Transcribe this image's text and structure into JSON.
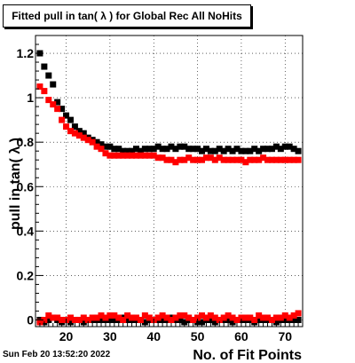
{
  "chart_data": {
    "type": "scatter",
    "title": "Fitted pull in tan( λ ) for Global Rec All NoHits",
    "xlabel": "No. of Fit Points",
    "ylabel": "pull in tan( λ )",
    "xlim": [
      13,
      74
    ],
    "ylim": [
      -0.03,
      1.28
    ],
    "xticks": [
      20,
      30,
      40,
      50,
      60,
      70
    ],
    "yticks": [
      0,
      0.2,
      0.4,
      0.6,
      0.8,
      1,
      1.2
    ],
    "grid": true,
    "series": [
      {
        "color": "#000000",
        "x": [
          14,
          15,
          16,
          17,
          18,
          19,
          20,
          21,
          22,
          23,
          24,
          25,
          26,
          27,
          28,
          29,
          30,
          31,
          32,
          33,
          34,
          35,
          36,
          37,
          38,
          39,
          40,
          41,
          42,
          43,
          44,
          45,
          46,
          47,
          48,
          49,
          50,
          51,
          52,
          53,
          54,
          55,
          56,
          57,
          58,
          59,
          60,
          61,
          62,
          63,
          64,
          65,
          66,
          67,
          68,
          69,
          70,
          71,
          72,
          73
        ],
        "y": [
          1.2,
          1.14,
          1.1,
          1.06,
          0.98,
          0.95,
          0.92,
          0.9,
          0.87,
          0.85,
          0.84,
          0.82,
          0.81,
          0.8,
          0.79,
          0.78,
          0.78,
          0.77,
          0.77,
          0.76,
          0.76,
          0.76,
          0.77,
          0.76,
          0.77,
          0.77,
          0.77,
          0.78,
          0.77,
          0.77,
          0.78,
          0.77,
          0.78,
          0.78,
          0.77,
          0.77,
          0.77,
          0.76,
          0.77,
          0.76,
          0.76,
          0.77,
          0.76,
          0.77,
          0.76,
          0.77,
          0.76,
          0.76,
          0.76,
          0.77,
          0.76,
          0.77,
          0.77,
          0.77,
          0.78,
          0.77,
          0.78,
          0.78,
          0.77,
          0.76
        ]
      },
      {
        "color": "#ff0000",
        "x": [
          14,
          15,
          16,
          17,
          18,
          19,
          20,
          21,
          22,
          23,
          24,
          25,
          26,
          27,
          28,
          29,
          30,
          31,
          32,
          33,
          34,
          35,
          36,
          37,
          38,
          39,
          40,
          41,
          42,
          43,
          44,
          45,
          46,
          47,
          48,
          49,
          50,
          51,
          52,
          53,
          54,
          55,
          56,
          57,
          58,
          59,
          60,
          61,
          62,
          63,
          64,
          65,
          66,
          67,
          68,
          69,
          70,
          71,
          72,
          73
        ],
        "y": [
          1.05,
          1.03,
          0.99,
          0.97,
          0.95,
          0.9,
          0.87,
          0.85,
          0.84,
          0.83,
          0.82,
          0.81,
          0.8,
          0.78,
          0.77,
          0.75,
          0.74,
          0.74,
          0.74,
          0.74,
          0.74,
          0.74,
          0.74,
          0.74,
          0.74,
          0.74,
          0.74,
          0.73,
          0.73,
          0.72,
          0.72,
          0.71,
          0.72,
          0.72,
          0.73,
          0.72,
          0.72,
          0.72,
          0.73,
          0.73,
          0.72,
          0.73,
          0.72,
          0.72,
          0.72,
          0.72,
          0.72,
          0.71,
          0.72,
          0.72,
          0.72,
          0.73,
          0.72,
          0.72,
          0.72,
          0.72,
          0.72,
          0.72,
          0.72,
          0.72
        ]
      },
      {
        "color": "#000000",
        "x": [
          14,
          15,
          16,
          17,
          18,
          19,
          20,
          21,
          22,
          23,
          24,
          25,
          26,
          27,
          28,
          29,
          30,
          31,
          32,
          33,
          34,
          35,
          36,
          37,
          38,
          39,
          40,
          41,
          42,
          43,
          44,
          45,
          46,
          47,
          48,
          49,
          50,
          51,
          52,
          53,
          54,
          55,
          56,
          57,
          58,
          59,
          60,
          61,
          62,
          63,
          64,
          65,
          66,
          67,
          68,
          69,
          70,
          71,
          72,
          73
        ],
        "y": [
          0.0,
          -0.01,
          0.0,
          0.01,
          0.0,
          -0.01,
          0.0,
          -0.01,
          0.0,
          0.0,
          -0.01,
          0.0,
          0.0,
          0.0,
          0.0,
          0.0,
          0.0,
          0.0,
          0.0,
          0.01,
          0.0,
          0.0,
          0.0,
          0.0,
          -0.01,
          0.0,
          0.0,
          0.0,
          0.0,
          0.0,
          0.01,
          0.0,
          0.0,
          -0.01,
          0.0,
          0.0,
          -0.01,
          -0.01,
          0.0,
          0.0,
          -0.01,
          0.0,
          0.0,
          0.0,
          -0.01,
          0.0,
          0.0,
          0.0,
          0.0,
          -0.01,
          0.0,
          0.0,
          0.0,
          0.0,
          -0.01,
          0.0,
          0.0,
          0.0,
          0.0,
          0.0
        ]
      },
      {
        "color": "#ff0000",
        "x": [
          14,
          15,
          16,
          17,
          18,
          19,
          20,
          21,
          22,
          23,
          24,
          25,
          26,
          27,
          28,
          29,
          30,
          31,
          32,
          33,
          34,
          35,
          36,
          37,
          38,
          39,
          40,
          41,
          42,
          43,
          44,
          45,
          46,
          47,
          48,
          49,
          50,
          51,
          52,
          53,
          54,
          55,
          56,
          57,
          58,
          59,
          60,
          61,
          62,
          63,
          64,
          65,
          66,
          67,
          68,
          69,
          70,
          71,
          72,
          73
        ],
        "y": [
          -0.01,
          0.0,
          0.02,
          0.01,
          0.01,
          0.0,
          0.0,
          0.01,
          0.0,
          0.0,
          0.01,
          0.0,
          0.01,
          0.01,
          0.02,
          0.01,
          0.02,
          0.02,
          0.01,
          0.0,
          0.02,
          0.01,
          0.01,
          0.0,
          0.02,
          0.01,
          0.0,
          0.01,
          0.02,
          0.01,
          0.0,
          0.01,
          0.02,
          0.02,
          0.01,
          0.0,
          0.01,
          0.02,
          0.01,
          0.02,
          0.01,
          0.0,
          0.01,
          0.02,
          0.01,
          0.0,
          0.01,
          0.01,
          0.01,
          0.0,
          0.02,
          0.01,
          0.01,
          0.0,
          0.01,
          0.01,
          0.02,
          0.01,
          0.02,
          0.03
        ]
      }
    ]
  },
  "footer": {
    "timestamp": "Sun Feb 20 13:52:20 2022"
  }
}
